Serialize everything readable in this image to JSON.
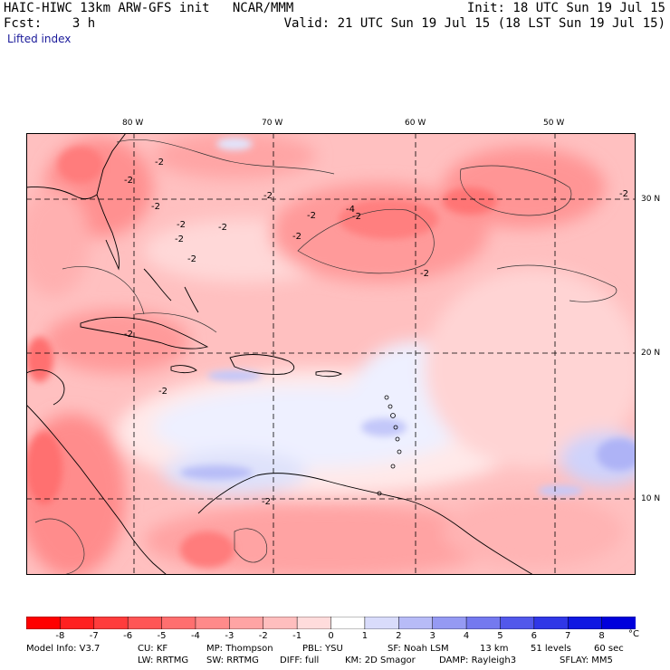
{
  "header": {
    "line1_left": "HAIC-HIWC 13km ARW-GFS init   NCAR/MMM",
    "line1_right": "Init: 18 UTC Sun 19 Jul 15",
    "line2_left": "Fcst:    3 h",
    "line2_right": "Valid: 21 UTC Sun 19 Jul 15 (18 LST Sun 19 Jul 15)",
    "field_name": "Lifted index"
  },
  "map": {
    "longitude_labels": [
      "80 W",
      "70 W",
      "60 W",
      "50 W"
    ],
    "latitude_labels": [
      "30 N",
      "20 N",
      "10 N"
    ],
    "contour_labels": [
      "-2",
      "-2",
      "-2",
      "-2",
      "-2",
      "-2",
      "-2",
      "-2",
      "-4",
      "-2",
      "-2",
      "-2",
      "-2",
      "-2",
      "-2",
      "-2",
      "-2"
    ],
    "colors": {
      "neg8": "#ff1a1a",
      "neg7": "#ff3a3a",
      "neg6": "#ff5555",
      "neg5": "#ff6e6e",
      "neg4": "#ff8888",
      "neg3": "#ffa3a3",
      "neg2": "#ffbdbd",
      "neg1": "#ffd8d8",
      "zero": "#ffffff",
      "pos1": "#d7dafa",
      "pos2": "#b5baf7",
      "pos3": "#9399f4",
      "pos4": "#7178f1",
      "pos5": "#5058ee",
      "pos6": "#3038eb",
      "pos7": "#1a22e6",
      "pos8": "#0000dd"
    }
  },
  "colorbar": {
    "labels": [
      "-8",
      "-7",
      "-6",
      "-5",
      "-4",
      "-3",
      "-2",
      "-1",
      "0",
      "1",
      "2",
      "3",
      "4",
      "5",
      "6",
      "7",
      "8"
    ],
    "unit": "°C",
    "colors": [
      "#ff0000",
      "#ff2020",
      "#ff3c3c",
      "#ff5656",
      "#ff6f6f",
      "#ff8a8a",
      "#ffa4a4",
      "#ffbebe",
      "#ffdcdc",
      "#ffffff",
      "#d9dcfb",
      "#b7bbf7",
      "#959af3",
      "#7479ef",
      "#5258eb",
      "#3037e7",
      "#0f18e2",
      "#0000dc"
    ]
  },
  "model_info": {
    "row1": [
      "Model Info: V3.7",
      "CU: KF",
      "MP: Thompson",
      "PBL: YSU",
      "SF: Noah LSM",
      "13 km",
      "51 levels",
      "60 sec"
    ],
    "row2": [
      "LW: RRTMG",
      "SW: RRTMG",
      "DIFF: full",
      "KM: 2D Smagor",
      "DAMP: Rayleigh3",
      "SFLAY: MM5"
    ]
  }
}
